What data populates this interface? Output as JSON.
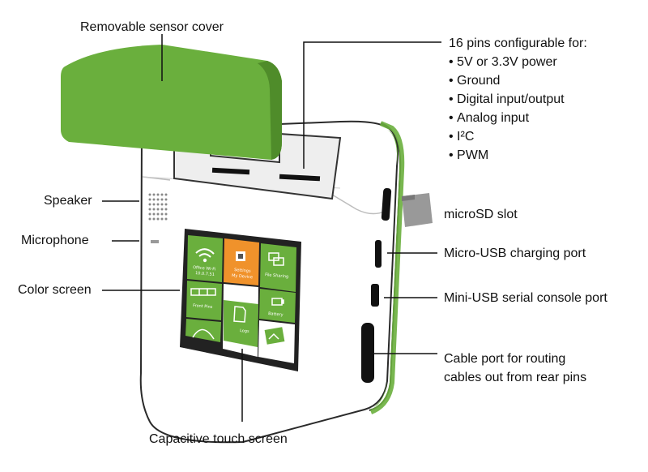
{
  "labels": {
    "sensor_cover": "Removable sensor cover",
    "speaker": "Speaker",
    "microphone": "Microphone",
    "color_screen": "Color screen",
    "touch_screen": "Capacitive touch screen",
    "microsd": "microSD slot",
    "micro_usb": "Micro-USB charging port",
    "mini_usb": "Mini-USB serial console port",
    "cable_port_line1": "Cable port for routing",
    "cable_port_line2": "cables out from rear pins"
  },
  "pins": {
    "heading": "16 pins configurable for:",
    "items": [
      "5V or 3.3V power",
      "Ground",
      "Digital input/output",
      "Analog input",
      "I²C",
      "PWM"
    ]
  },
  "screen": {
    "tiles": {
      "wifi": "Office Wi-Fi",
      "wifi_ip": "10.0.7.51",
      "settings": "Settings",
      "settings_sub": "My Device",
      "file_sharing": "File Sharing",
      "front_pins": "Front Pins",
      "battery": "Battery",
      "logs": "Logs"
    }
  },
  "colors": {
    "green": "#6aaf3d",
    "orange": "#f0922b",
    "screen_frame": "#222222",
    "side_green": "#5c8e38"
  }
}
